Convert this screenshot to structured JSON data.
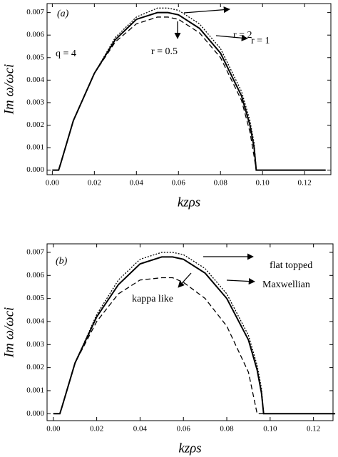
{
  "chart_data": [
    {
      "type": "line",
      "xlabel": "kzρs",
      "ylabel": "Im ω/ωci",
      "annotations": [
        "(a)",
        "q = 4",
        "r = 2",
        "r = 1",
        "r = 0.5"
      ],
      "xlim": [
        -0.0025,
        0.1325
      ],
      "ylim": [
        -0.0002,
        0.0074
      ],
      "xticks": [
        {
          "value": 0,
          "label": "0.00"
        },
        {
          "value": 0.02,
          "label": "0.02"
        },
        {
          "value": 0.04,
          "label": "0.04"
        },
        {
          "value": 0.06,
          "label": "0.06"
        },
        {
          "value": 0.08,
          "label": "0.08"
        },
        {
          "value": 0.1,
          "label": "0.10"
        },
        {
          "value": 0.12,
          "label": "0.12"
        }
      ],
      "yticks": [
        {
          "value": 0,
          "label": "0.000"
        },
        {
          "value": 0.001,
          "label": "0.001"
        },
        {
          "value": 0.002,
          "label": "0.002"
        },
        {
          "value": 0.003,
          "label": "0.003"
        },
        {
          "value": 0.004,
          "label": "0.004"
        },
        {
          "value": 0.005,
          "label": "0.005"
        },
        {
          "value": 0.006,
          "label": "0.006"
        },
        {
          "value": 0.007,
          "label": "0.007"
        }
      ],
      "x": [
        0,
        0.003,
        0.004,
        0.01,
        0.02,
        0.03,
        0.04,
        0.05,
        0.055,
        0.06,
        0.07,
        0.08,
        0.09,
        0.094,
        0.096,
        0.097,
        0.13
      ],
      "series": [
        {
          "color": "#000000",
          "line_style": "solid",
          "values": [
            0,
            0,
            0.0003,
            0.0022,
            0.0043,
            0.0058,
            0.0067,
            0.007,
            0.007,
            0.0069,
            0.0063,
            0.0052,
            0.0033,
            0.002,
            0.001,
            0,
            0
          ]
        },
        {
          "color": "#000000",
          "line_style": "dotted",
          "values": [
            0,
            0,
            0.0003,
            0.0022,
            0.0043,
            0.0059,
            0.0068,
            0.0072,
            0.0072,
            0.0071,
            0.0065,
            0.0054,
            0.0035,
            0.0022,
            0.0012,
            0,
            0
          ]
        },
        {
          "color": "#000000",
          "line_style": "dashed",
          "values": [
            0,
            0,
            0.0003,
            0.0022,
            0.0043,
            0.0057,
            0.0065,
            0.0068,
            0.0068,
            0.0067,
            0.0061,
            0.005,
            0.0031,
            0.0017,
            0.0006,
            0,
            0
          ]
        }
      ]
    },
    {
      "type": "line",
      "xlabel": "kzρs",
      "ylabel": "Im ω/ωci",
      "annotations": [
        "(b)",
        "flat topped",
        "Maxwellian",
        "kappa like"
      ],
      "xlim": [
        -0.0029,
        0.129
      ],
      "ylim": [
        -0.0003,
        0.00737
      ],
      "xticks": [
        {
          "value": 0,
          "label": "0.00"
        },
        {
          "value": 0.02,
          "label": "0.02"
        },
        {
          "value": 0.04,
          "label": "0.04"
        },
        {
          "value": 0.06,
          "label": "0.06"
        },
        {
          "value": 0.08,
          "label": "0.08"
        },
        {
          "value": 0.1,
          "label": "0.10"
        },
        {
          "value": 0.12,
          "label": "0.12"
        }
      ],
      "yticks": [
        {
          "value": 0,
          "label": "0.000"
        },
        {
          "value": 0.001,
          "label": "0.001"
        },
        {
          "value": 0.002,
          "label": "0.002"
        },
        {
          "value": 0.003,
          "label": "0.003"
        },
        {
          "value": 0.004,
          "label": "0.004"
        },
        {
          "value": 0.005,
          "label": "0.005"
        },
        {
          "value": 0.006,
          "label": "0.006"
        },
        {
          "value": 0.007,
          "label": "0.007"
        }
      ],
      "x": [
        0,
        0.003,
        0.004,
        0.01,
        0.02,
        0.03,
        0.04,
        0.05,
        0.055,
        0.06,
        0.07,
        0.08,
        0.09,
        0.094,
        0.096,
        0.097,
        0.13
      ],
      "series": [
        {
          "color": "#000000",
          "line_style": "solid",
          "values": [
            0,
            0,
            0.0003,
            0.0022,
            0.0042,
            0.0056,
            0.0065,
            0.0068,
            0.0068,
            0.0067,
            0.0061,
            0.005,
            0.0032,
            0.0019,
            0.0009,
            0,
            0
          ]
        },
        {
          "color": "#000000",
          "line_style": "dotted",
          "values": [
            0,
            0,
            0.0003,
            0.0022,
            0.0043,
            0.0058,
            0.0067,
            0.007,
            0.007,
            0.0069,
            0.0063,
            0.0052,
            0.0034,
            0.0021,
            0.0011,
            0,
            0
          ]
        },
        {
          "color": "#000000",
          "line_style": "dashed",
          "values": [
            0,
            0,
            0.0003,
            0.0022,
            0.004,
            0.0052,
            0.0058,
            0.0059,
            0.0059,
            0.0057,
            0.005,
            0.0038,
            0.0018,
            0,
            0,
            0,
            0
          ]
        }
      ]
    }
  ]
}
